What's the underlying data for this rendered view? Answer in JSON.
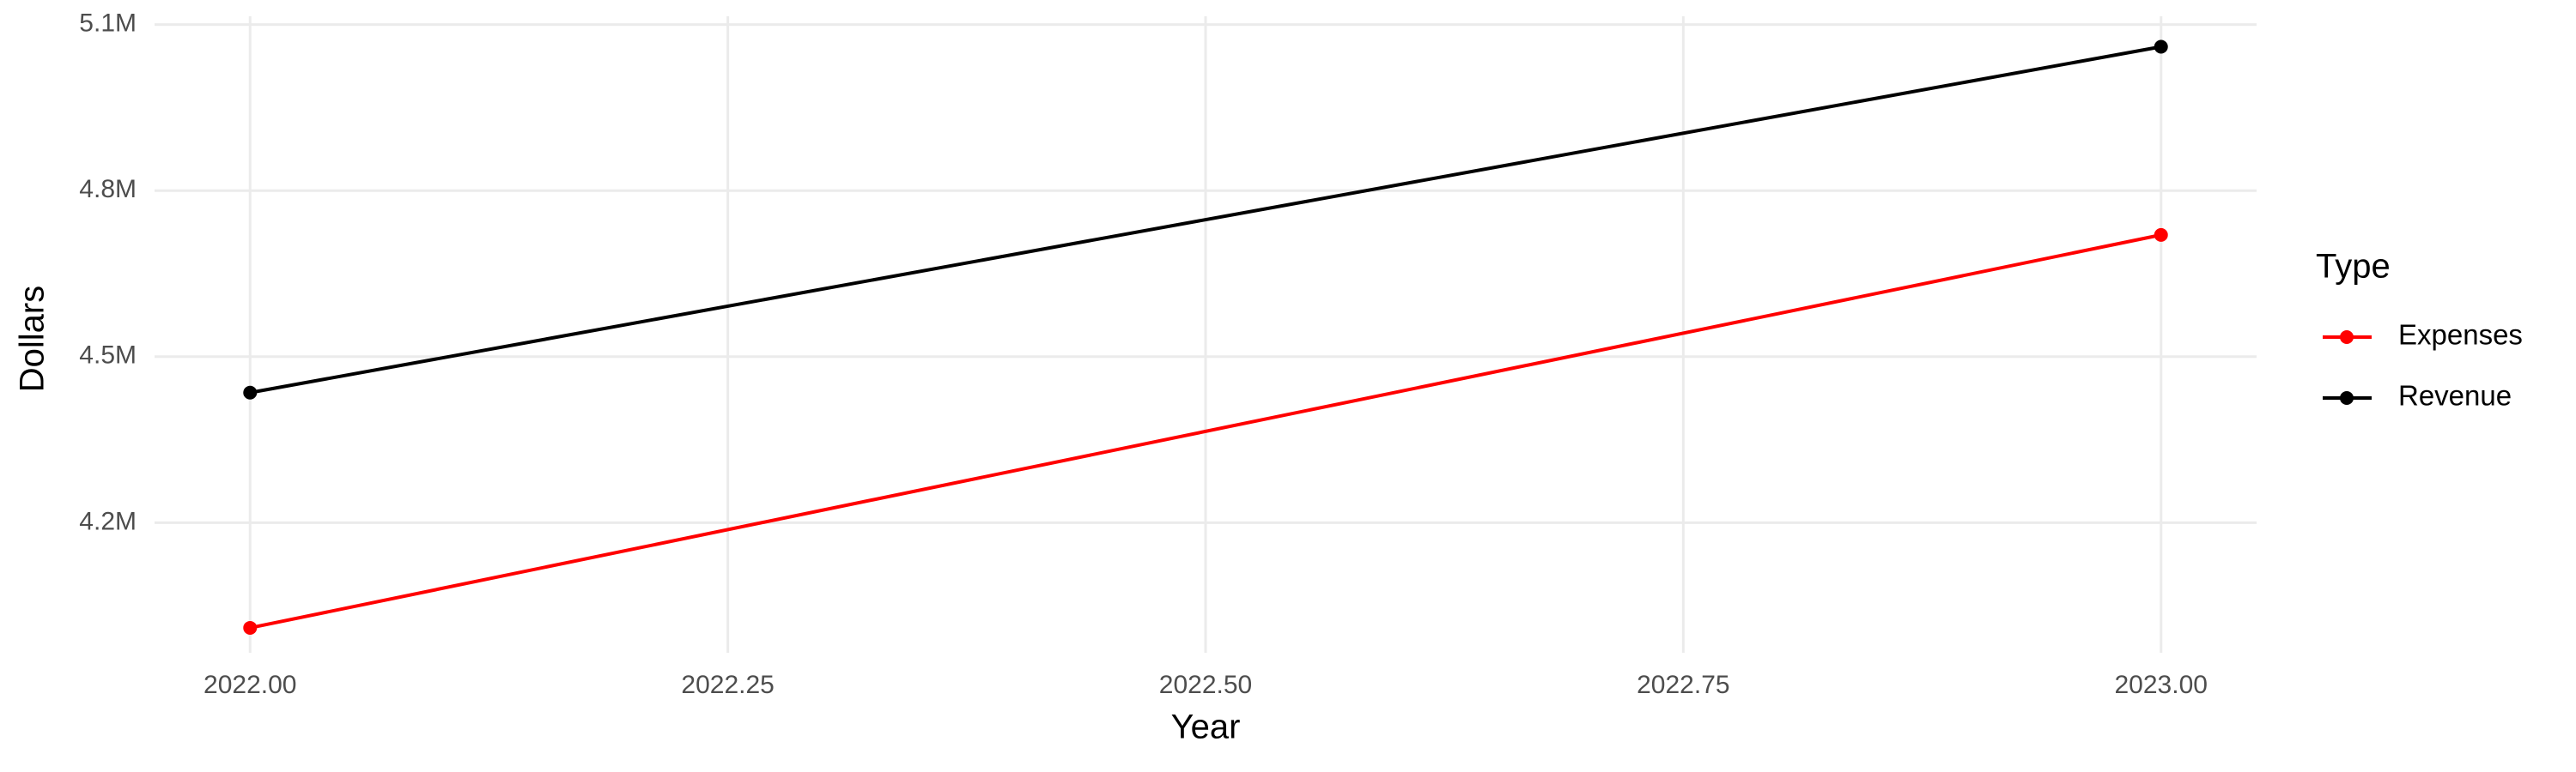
{
  "chart_data": {
    "type": "line",
    "x_label": "Year",
    "y_label": "Dollars",
    "legend_title": "Type",
    "legend_position": "right",
    "grid": true,
    "x": [
      2022,
      2023
    ],
    "series": [
      {
        "name": "Expenses",
        "color": "#ff0000",
        "values": [
          4010000,
          4720000
        ]
      },
      {
        "name": "Revenue",
        "color": "#000000",
        "values": [
          4435000,
          5060000
        ]
      }
    ],
    "xlim": [
      2021.95,
      2023.05
    ],
    "xticks": [
      {
        "value": 2022,
        "label": "2022.00"
      },
      {
        "value": 2022.25,
        "label": "2022.25"
      },
      {
        "value": 2022.5,
        "label": "2022.50"
      },
      {
        "value": 2022.75,
        "label": "2022.75"
      },
      {
        "value": 2023,
        "label": "2023.00"
      }
    ],
    "ylim": [
      3965000,
      5115000
    ],
    "yticks": [
      {
        "value": 4200000,
        "label": "4.2M"
      },
      {
        "value": 4500000,
        "label": "4.5M"
      },
      {
        "value": 4800000,
        "label": "4.8M"
      },
      {
        "value": 5100000,
        "label": "5.1M"
      }
    ]
  }
}
